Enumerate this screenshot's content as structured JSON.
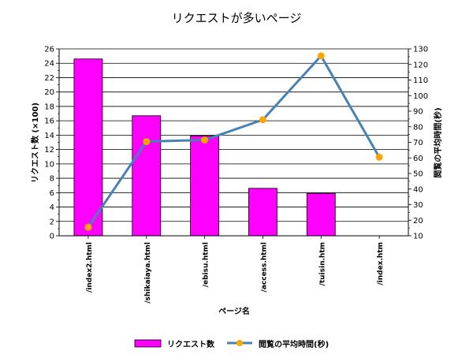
{
  "chart_data": {
    "type": "bar",
    "title": "リクエストが多いページ",
    "xlabel": "ページ名",
    "ylabel": "リクエスト数 (×100)",
    "y2label": "閲覧の平均時間(秒)",
    "categories": [
      "/index2.html",
      "/shikaiaya.html",
      "/ebisu.html",
      "/access.html",
      "/tuisin.htm",
      "/index.htm"
    ],
    "ylim": [
      0,
      26
    ],
    "yticks": [
      0,
      2,
      4,
      6,
      8,
      10,
      12,
      14,
      16,
      18,
      20,
      22,
      24,
      26
    ],
    "y2lim": [
      10,
      130
    ],
    "y2ticks": [
      10,
      20,
      30,
      40,
      50,
      60,
      70,
      80,
      90,
      100,
      110,
      120,
      130
    ],
    "grid": true,
    "legend_position": "bottom",
    "series": [
      {
        "name": "リクエスト数",
        "type": "bar",
        "axis": "left",
        "color": "#ff00ff",
        "values": [
          24.6,
          16.7,
          13.9,
          6.6,
          5.9,
          0
        ]
      },
      {
        "name": "閲覧の平均時間(秒)",
        "type": "line",
        "axis": "right",
        "color": "#4682b4",
        "marker_color": "#ffa500",
        "values": [
          15.5,
          70.5,
          71.5,
          84.5,
          125.5,
          60.5
        ]
      }
    ]
  }
}
